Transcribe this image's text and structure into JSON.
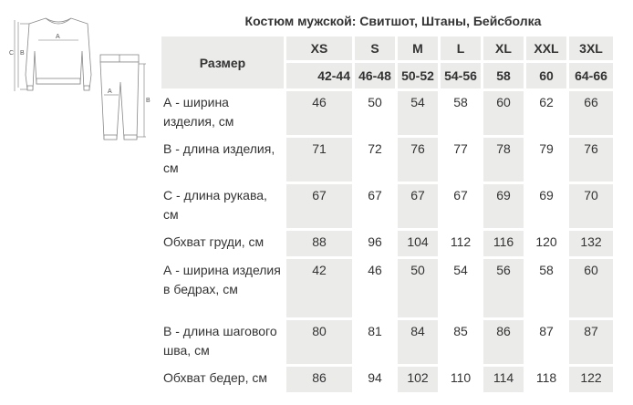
{
  "title": "Костюм мужской: Свитшот, Штаны, Бейсболка",
  "illustration": {
    "letters": [
      "A",
      "B",
      "C",
      "A",
      "B"
    ]
  },
  "table": {
    "header_label": "Размер",
    "sizes": [
      "XS",
      "S",
      "M",
      "L",
      "XL",
      "XXL",
      "3XL"
    ],
    "ru_sizes": [
      "42-44",
      "46-48",
      "50-52",
      "54-56",
      "58",
      "60",
      "64-66"
    ],
    "rows": [
      {
        "label": "А - ширина изделия, см",
        "values": [
          "46",
          "50",
          "54",
          "58",
          "60",
          "62",
          "66"
        ]
      },
      {
        "label": "В - длина изделия, см",
        "values": [
          "71",
          "72",
          "76",
          "77",
          "78",
          "79",
          "76"
        ]
      },
      {
        "label": "С - длина рукава, см",
        "values": [
          "67",
          "67",
          "67",
          "67",
          "69",
          "69",
          "70"
        ]
      },
      {
        "label": "Обхват груди, см",
        "values": [
          "88",
          "96",
          "104",
          "112",
          "116",
          "120",
          "132"
        ]
      },
      {
        "label": "А - ширина изделия в бедрах, см",
        "values": [
          "42",
          "46",
          "50",
          "54",
          "56",
          "58",
          "60"
        ]
      },
      {
        "label": "В - длина шагового шва, см",
        "values": [
          "80",
          "81",
          "84",
          "85",
          "86",
          "87",
          "87"
        ]
      },
      {
        "label": "Обхват бедер, см",
        "values": [
          "86",
          "94",
          "102",
          "110",
          "114",
          "118",
          "122"
        ]
      }
    ]
  },
  "colors": {
    "cell_shade": "#ebebea",
    "text": "#333333"
  }
}
